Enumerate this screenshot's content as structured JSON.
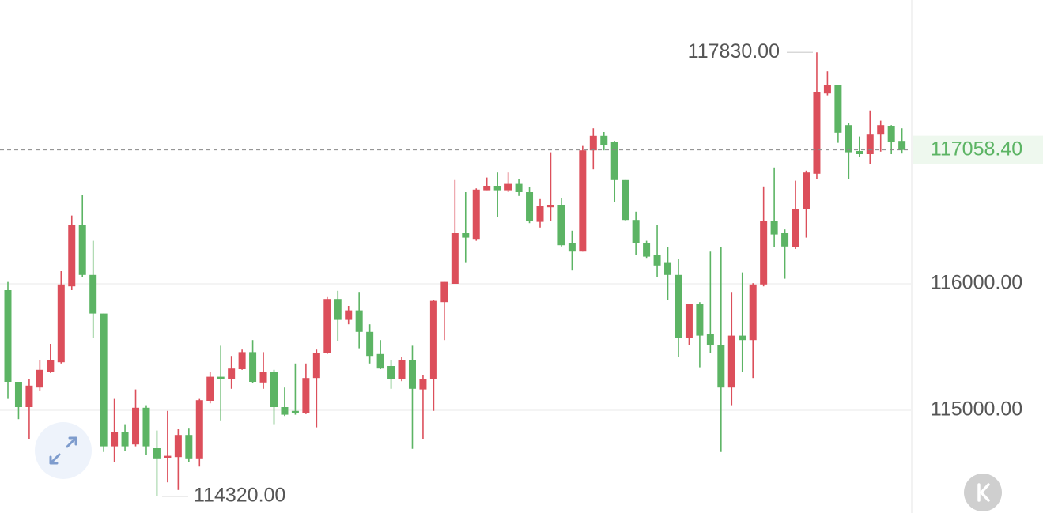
{
  "chart_data": {
    "type": "candlestick",
    "up_color": "#dc4f5b",
    "down_color": "#5cb464",
    "ylim": [
      114187.5,
      118243.75
    ],
    "yticks": [
      {
        "value": 116000,
        "label": "116000.00"
      },
      {
        "value": 115000,
        "label": "115000.00"
      }
    ],
    "grid": true,
    "open": [
      115950,
      115225,
      115025,
      115180,
      115305,
      115380,
      115980,
      116465,
      116070,
      115765,
      114715,
      114830,
      114730,
      115020,
      114700,
      114625,
      114630,
      114805,
      114620,
      115075,
      115265,
      115245,
      115325,
      115460,
      115220,
      115305,
      115025,
      114995,
      114975,
      115255,
      115450,
      115880,
      115715,
      115790,
      115620,
      115445,
      115350,
      115245,
      115400,
      115165,
      115245,
      115855,
      116000,
      116400,
      116355,
      116740,
      116775,
      116740,
      116790,
      116725,
      116490,
      116605,
      116625,
      116320,
      116255,
      117055,
      117170,
      117120,
      116820,
      116505,
      116325,
      116225,
      116165,
      116070,
      115570,
      115840,
      115600,
      115515,
      115180,
      115590,
      115555,
      115995,
      116495,
      116400,
      116290,
      116590,
      116870,
      117505,
      117570,
      117255,
      117050,
      117025,
      117180,
      117250,
      117130
    ],
    "high": [
      116015,
      115225,
      115245,
      115400,
      115525,
      116100,
      116540,
      116700,
      116340,
      115765,
      115090,
      114890,
      115165,
      115040,
      114840,
      114995,
      114850,
      114855,
      115090,
      115305,
      115510,
      115430,
      115480,
      115555,
      115460,
      115320,
      115180,
      115370,
      115370,
      115480,
      115895,
      115945,
      115825,
      115930,
      115680,
      115555,
      115400,
      115420,
      115510,
      115280,
      115870,
      116015,
      116820,
      116725,
      116755,
      116840,
      116880,
      116880,
      116825,
      116765,
      116670,
      117040,
      116680,
      116420,
      117090,
      117230,
      117200,
      117130,
      116820,
      116570,
      116340,
      116465,
      116290,
      116195,
      115840,
      115855,
      116255,
      116290,
      115930,
      116090,
      116005,
      116770,
      116920,
      116430,
      116815,
      116895,
      117830,
      117680,
      117570,
      117275,
      117165,
      117370,
      117290,
      117255,
      117230
    ],
    "low": [
      115090,
      114930,
      114775,
      115150,
      115295,
      115370,
      115950,
      116055,
      115575,
      114670,
      114590,
      114680,
      114715,
      114650,
      114320,
      114430,
      114370,
      114590,
      114555,
      115055,
      114920,
      115170,
      115320,
      115215,
      115170,
      114890,
      114955,
      114965,
      114970,
      114865,
      115445,
      115550,
      115680,
      115490,
      115370,
      115325,
      115170,
      115230,
      114695,
      114775,
      114995,
      115555,
      116000,
      116165,
      116340,
      116740,
      116525,
      116725,
      116695,
      116480,
      116445,
      116495,
      116295,
      116105,
      116255,
      116905,
      117055,
      116645,
      116500,
      116230,
      116205,
      116055,
      115870,
      115425,
      115515,
      115340,
      115455,
      114670,
      115040,
      115305,
      115255,
      115980,
      116290,
      116040,
      116275,
      116365,
      116825,
      117490,
      117115,
      116830,
      117005,
      116950,
      117045,
      117025,
      117030
    ],
    "close": [
      115225,
      115025,
      115195,
      115320,
      115395,
      115995,
      116465,
      116070,
      115765,
      114715,
      114830,
      114715,
      115020,
      114715,
      114620,
      114640,
      114805,
      114620,
      115080,
      115265,
      115245,
      115330,
      115460,
      115225,
      115305,
      115025,
      114965,
      114975,
      115255,
      115455,
      115880,
      115715,
      115790,
      115620,
      115430,
      115330,
      115245,
      115400,
      115170,
      115245,
      115865,
      116015,
      116400,
      116365,
      116745,
      116775,
      116740,
      116790,
      116725,
      116495,
      116615,
      116625,
      116305,
      116255,
      117055,
      117170,
      117100,
      116820,
      116505,
      116325,
      116215,
      116145,
      116070,
      115570,
      115840,
      115590,
      115515,
      115180,
      115590,
      115555,
      115995,
      116495,
      116390,
      116295,
      116590,
      116880,
      117515,
      117570,
      117195,
      117040,
      117025,
      117180,
      117255,
      117120,
      117058.4
    ],
    "high_label": {
      "value": 117830,
      "label": "117830.00"
    },
    "low_label": {
      "value": 114320,
      "label": "114320.00"
    },
    "last_price": {
      "value": 117058.4,
      "label": "117058.40"
    }
  }
}
